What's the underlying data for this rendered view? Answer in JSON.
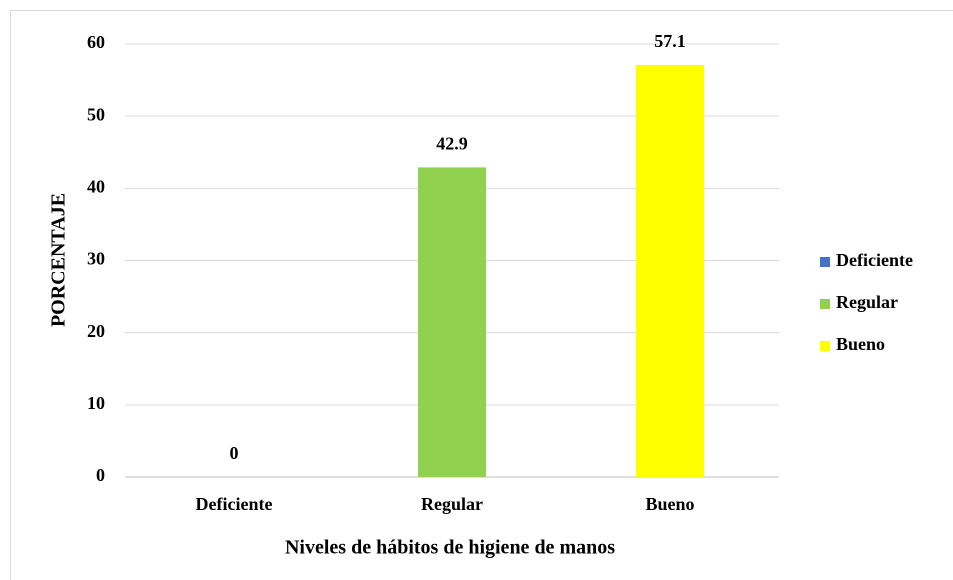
{
  "chart_data": {
    "type": "bar",
    "categories": [
      "Deficiente",
      "Regular",
      "Bueno"
    ],
    "values": [
      0,
      42.9,
      57.1
    ],
    "colors": [
      "#4472c4",
      "#92d050",
      "#ffff00"
    ],
    "ylim": [
      0,
      60
    ],
    "yticks": [
      0,
      10,
      20,
      30,
      40,
      50,
      60
    ],
    "xlabel": "Niveles de hábitos de higiene de manos",
    "ylabel": "PORCENTAJE",
    "grid": true,
    "legend": "right"
  }
}
